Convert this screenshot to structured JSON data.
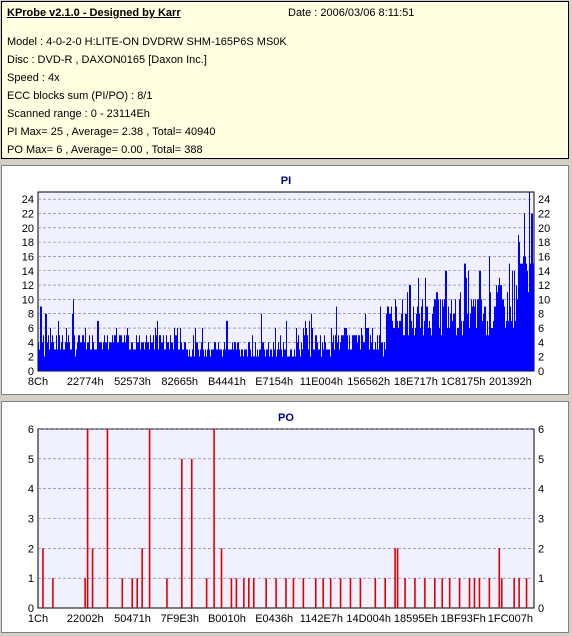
{
  "header": {
    "title": "KProbe v2.1.0 - Designed by Karr",
    "date": "Date : 2006/03/06 8:11:51",
    "lines": [
      "Model : 4-0-2-0 H:LITE-ON DVDRW SHM-165P6S MS0K",
      "Disc : DVD-R , DAXON0165 [Daxon Inc.]",
      "Speed : 4x",
      "ECC blocks sum (PI/PO) : 8/1",
      "Scanned range : 0 - 23114Eh",
      "PI Max= 25 , Average= 2.38 , Total= 40940",
      "PO Max= 6 , Average= 0.00 , Total= 388"
    ]
  },
  "colors": {
    "pi": "#0000ff",
    "po": "#e00000",
    "plot_bg": "#f0f0ff",
    "grid": "#7070a0",
    "title": "#000080"
  },
  "chart_data": [
    {
      "type": "bar",
      "title": "PI",
      "ylim": [
        0,
        25
      ],
      "yticks": [
        0,
        2,
        4,
        6,
        8,
        10,
        12,
        14,
        16,
        18,
        20,
        22,
        24
      ],
      "xticks": [
        "8Ch",
        "22774h",
        "52573h",
        "82665h",
        "B4441h",
        "E7154h",
        "11E004h",
        "156562h",
        "18E717h",
        "1C8175h",
        "201392h"
      ],
      "grid": true,
      "segments": [
        {
          "from": 0.0,
          "to": 0.08,
          "base": 4,
          "amp": 3,
          "spikes": [
            [
              0.005,
              9
            ],
            [
              0.015,
              8
            ],
            [
              0.04,
              7
            ],
            [
              0.07,
              10
            ]
          ]
        },
        {
          "from": 0.08,
          "to": 0.3,
          "base": 4,
          "amp": 2,
          "spikes": [
            [
              0.12,
              7
            ],
            [
              0.18,
              6
            ],
            [
              0.24,
              7
            ],
            [
              0.28,
              6
            ]
          ]
        },
        {
          "from": 0.3,
          "to": 0.52,
          "base": 3,
          "amp": 2,
          "spikes": [
            [
              0.33,
              6
            ],
            [
              0.38,
              7
            ],
            [
              0.45,
              8
            ],
            [
              0.5,
              7
            ]
          ]
        },
        {
          "from": 0.52,
          "to": 0.7,
          "base": 4,
          "amp": 3,
          "spikes": [
            [
              0.55,
              8
            ],
            [
              0.6,
              9
            ],
            [
              0.66,
              8
            ],
            [
              0.69,
              9
            ]
          ]
        },
        {
          "from": 0.7,
          "to": 0.8,
          "base": 7,
          "amp": 4,
          "spikes": [
            [
              0.72,
              10
            ],
            [
              0.75,
              12
            ],
            [
              0.78,
              13
            ]
          ]
        },
        {
          "from": 0.8,
          "to": 0.92,
          "base": 8,
          "amp": 5,
          "spikes": [
            [
              0.82,
              14
            ],
            [
              0.86,
              15
            ],
            [
              0.89,
              14
            ],
            [
              0.91,
              16
            ]
          ]
        },
        {
          "from": 0.92,
          "to": 0.965,
          "base": 9,
          "amp": 5,
          "spikes": [
            [
              0.93,
              13
            ],
            [
              0.95,
              15
            ],
            [
              0.96,
              14
            ]
          ]
        },
        {
          "from": 0.965,
          "to": 1.0,
          "base": 13,
          "amp": 6,
          "spikes": [
            [
              0.97,
              18
            ],
            [
              0.98,
              22
            ],
            [
              0.99,
              25
            ],
            [
              0.995,
              22
            ]
          ]
        }
      ]
    },
    {
      "type": "bar",
      "title": "PO",
      "ylim": [
        0,
        6
      ],
      "yticks": [
        0,
        1,
        2,
        3,
        4,
        5,
        6
      ],
      "xticks": [
        "1Ch",
        "22002h",
        "50471h",
        "7F9E3h",
        "B0010h",
        "E0436h",
        "1142E7h",
        "14D004h",
        "18595Eh",
        "1BF93Fh",
        "1FC007h"
      ],
      "grid": true,
      "bars": [
        [
          0.01,
          2
        ],
        [
          0.03,
          1
        ],
        [
          0.095,
          1
        ],
        [
          0.1,
          6
        ],
        [
          0.11,
          2
        ],
        [
          0.14,
          6
        ],
        [
          0.17,
          1
        ],
        [
          0.19,
          1
        ],
        [
          0.2,
          1
        ],
        [
          0.21,
          2
        ],
        [
          0.225,
          6
        ],
        [
          0.26,
          1
        ],
        [
          0.29,
          5
        ],
        [
          0.31,
          5
        ],
        [
          0.34,
          1
        ],
        [
          0.355,
          6
        ],
        [
          0.37,
          2
        ],
        [
          0.39,
          1
        ],
        [
          0.4,
          1
        ],
        [
          0.415,
          1
        ],
        [
          0.425,
          1
        ],
        [
          0.435,
          1
        ],
        [
          0.46,
          1
        ],
        [
          0.48,
          1
        ],
        [
          0.5,
          1
        ],
        [
          0.515,
          1
        ],
        [
          0.535,
          1
        ],
        [
          0.56,
          1
        ],
        [
          0.575,
          1
        ],
        [
          0.59,
          1
        ],
        [
          0.61,
          1
        ],
        [
          0.63,
          1
        ],
        [
          0.65,
          1
        ],
        [
          0.68,
          1
        ],
        [
          0.7,
          1
        ],
        [
          0.72,
          2
        ],
        [
          0.725,
          2
        ],
        [
          0.74,
          1
        ],
        [
          0.76,
          1
        ],
        [
          0.78,
          1
        ],
        [
          0.8,
          1
        ],
        [
          0.815,
          1
        ],
        [
          0.83,
          1
        ],
        [
          0.85,
          1
        ],
        [
          0.87,
          1
        ],
        [
          0.88,
          1
        ],
        [
          0.89,
          1
        ],
        [
          0.91,
          1
        ],
        [
          0.93,
          2
        ],
        [
          0.935,
          1
        ],
        [
          0.96,
          1
        ],
        [
          0.97,
          1
        ],
        [
          0.985,
          1
        ]
      ]
    }
  ]
}
